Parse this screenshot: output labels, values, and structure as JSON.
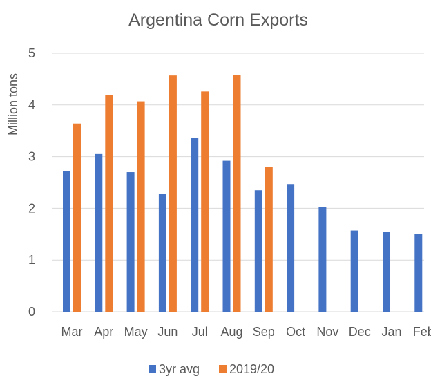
{
  "chart_data": {
    "type": "bar",
    "title": "Argentina Corn Exports",
    "xlabel": "",
    "ylabel": "Million tons",
    "ylim": [
      0,
      5
    ],
    "yticks": [
      "0",
      "1",
      "2",
      "3",
      "4",
      "5"
    ],
    "grid": true,
    "legend_position": "bottom",
    "categories": [
      "Mar",
      "Apr",
      "May",
      "Jun",
      "Jul",
      "Aug",
      "Sep",
      "Oct",
      "Nov",
      "Dec",
      "Jan",
      "Feb"
    ],
    "series": [
      {
        "name": "3yr avg",
        "color": "#4472c4",
        "values": [
          2.72,
          3.05,
          2.7,
          2.28,
          3.36,
          2.92,
          2.35,
          2.47,
          2.02,
          1.57,
          1.55,
          1.51
        ]
      },
      {
        "name": "2019/20",
        "color": "#ed7d31",
        "values": [
          3.64,
          4.19,
          4.07,
          4.57,
          4.26,
          4.58,
          2.8,
          null,
          null,
          null,
          null,
          null
        ]
      }
    ]
  }
}
